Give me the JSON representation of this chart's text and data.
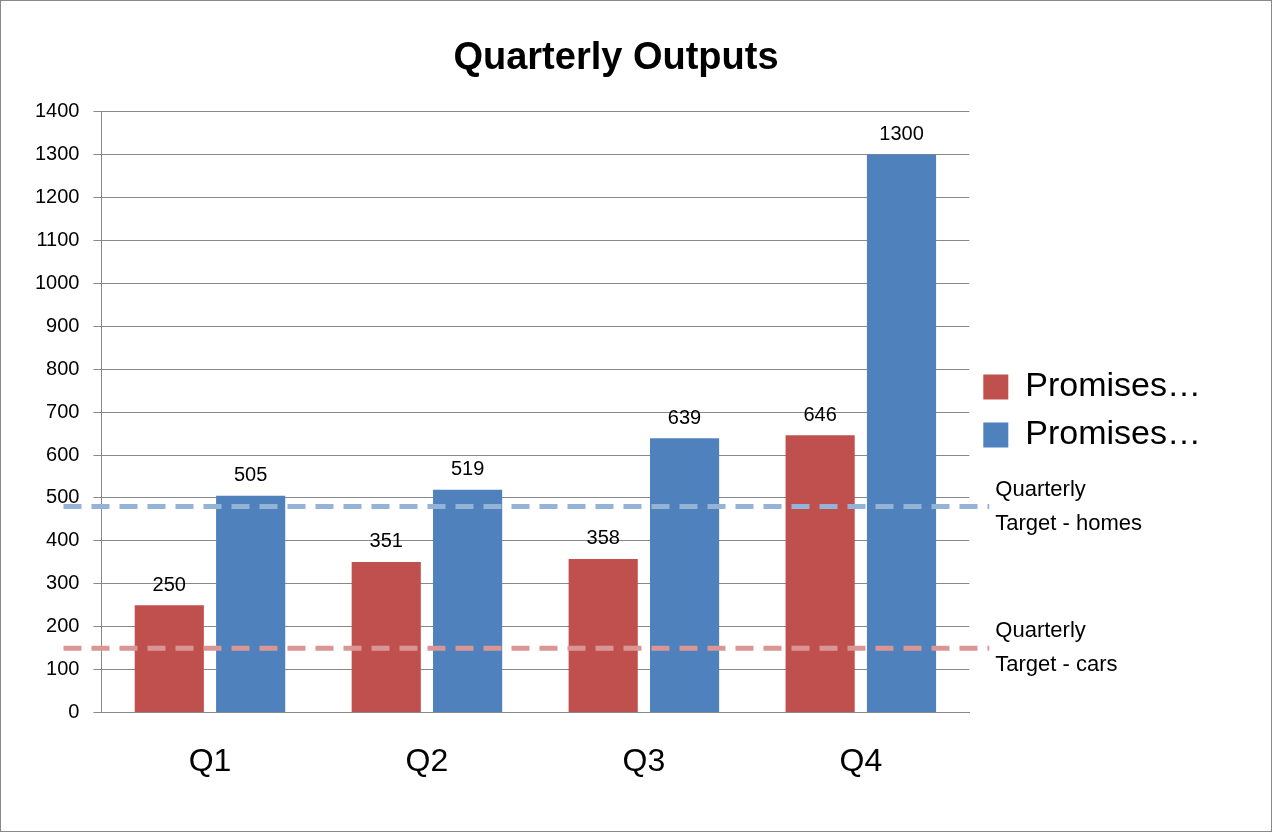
{
  "chart_data": {
    "type": "bar",
    "title": "Quarterly Outputs",
    "categories": [
      "Q1",
      "Q2",
      "Q3",
      "Q4"
    ],
    "series": [
      {
        "name": "Promises…",
        "color": "#c0504d",
        "values": [
          250,
          351,
          358,
          646
        ]
      },
      {
        "name": "Promises…",
        "color": "#4f81bd",
        "values": [
          505,
          519,
          639,
          1300
        ]
      }
    ],
    "ylim": [
      0,
      1400
    ],
    "yticks": [
      0,
      100,
      200,
      300,
      400,
      500,
      600,
      700,
      800,
      900,
      1000,
      1100,
      1200,
      1300,
      1400
    ],
    "grid": "y",
    "legend": "right",
    "data_labels": true,
    "ref_lines": [
      {
        "axis": "y",
        "value": 480,
        "label": "Quarterly Target - homes",
        "color": "#95b3d7",
        "line_style": "dashed"
      },
      {
        "axis": "y",
        "value": 150,
        "label": "Quarterly Target - cars",
        "color": "#d99694",
        "line_style": "dashed"
      }
    ]
  }
}
